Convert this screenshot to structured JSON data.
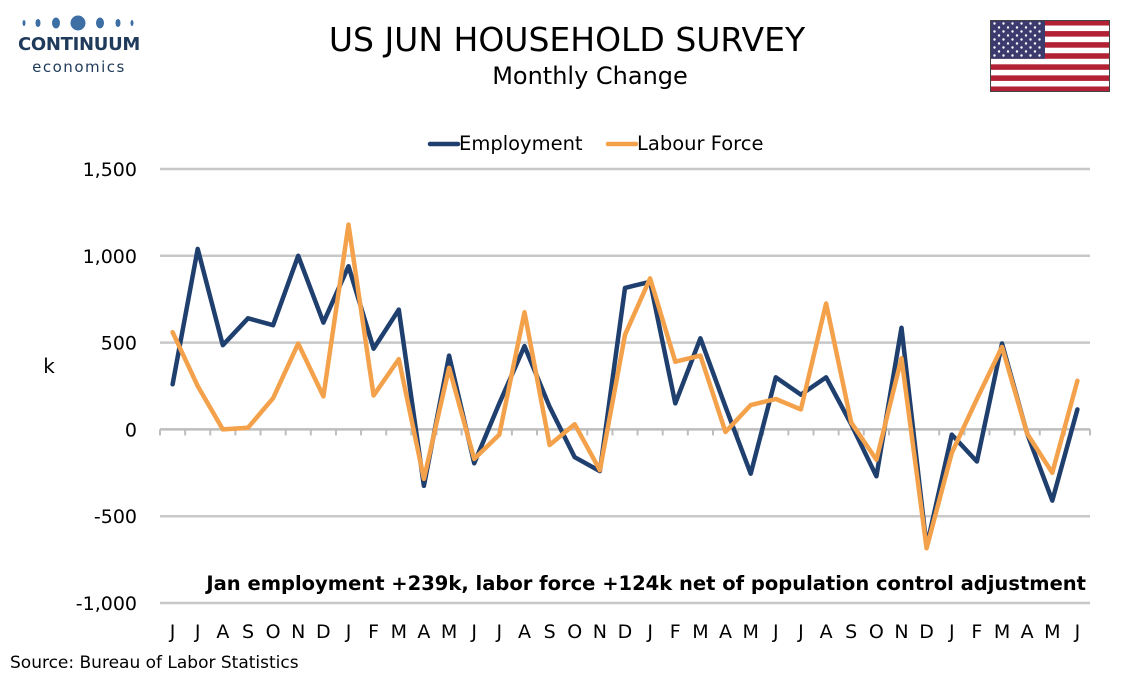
{
  "header": {
    "title": "US JUN HOUSEHOLD SURVEY",
    "subtitle": "Monthly Change",
    "logo_brand": "CONTINUUM",
    "logo_sub": "economics",
    "flag": "us-flag"
  },
  "source": "Source: Bureau of Labor Statistics",
  "colors": {
    "employment": "#1f3f6e",
    "labour_force": "#f4a14b",
    "grid": "#c8c8c8",
    "logo": "#1f3a5a"
  },
  "chart_data": {
    "type": "line",
    "title": "US JUN HOUSEHOLD SURVEY",
    "subtitle": "Monthly Change",
    "xlabel": "",
    "ylabel": "k",
    "ylim": [
      -1000,
      1500
    ],
    "yticks": [
      -1000,
      -500,
      0,
      500,
      1000,
      1500
    ],
    "ytick_labels": [
      "-1,000",
      "-500",
      "0",
      "500",
      "1,000",
      "1,500"
    ],
    "grid": true,
    "legend": "top-center",
    "annotation": "Jan employment +239k, labor force +124k net of population control adjustment",
    "categories": [
      "J",
      "J",
      "A",
      "S",
      "O",
      "N",
      "D",
      "J",
      "F",
      "M",
      "A",
      "M",
      "J",
      "J",
      "A",
      "S",
      "O",
      "N",
      "D",
      "J",
      "F",
      "M",
      "A",
      "M",
      "J",
      "J",
      "A",
      "S",
      "O",
      "N",
      "D",
      "J",
      "F",
      "M",
      "A",
      "M",
      "J"
    ],
    "series": [
      {
        "name": "Employment",
        "color": "#1f3f6e",
        "values": [
          260,
          1040,
          485,
          640,
          600,
          1000,
          615,
          940,
          465,
          690,
          -325,
          425,
          -195,
          150,
          480,
          130,
          -160,
          -240,
          815,
          850,
          150,
          525,
          130,
          -255,
          300,
          200,
          300,
          30,
          -270,
          585,
          -675,
          -30,
          -185,
          495,
          -25,
          -410,
          115
        ]
      },
      {
        "name": "Labour Force",
        "color": "#f4a14b",
        "values": [
          560,
          250,
          0,
          10,
          180,
          495,
          190,
          1180,
          195,
          405,
          -285,
          355,
          -170,
          -30,
          675,
          -90,
          30,
          -235,
          545,
          870,
          390,
          425,
          -15,
          140,
          175,
          115,
          725,
          40,
          -175,
          410,
          -685,
          -135,
          175,
          475,
          -25,
          -250,
          280
        ]
      }
    ]
  }
}
